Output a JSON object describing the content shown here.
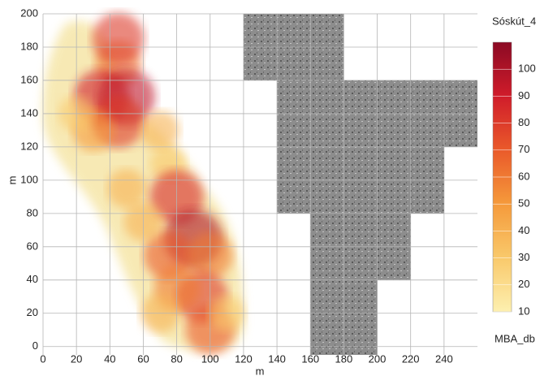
{
  "chart_data": {
    "type": "density",
    "legend_title": "Sóskút_4",
    "colorbar_label": "MBA_db",
    "xlabel": "m",
    "ylabel": "m",
    "xlim": [
      0,
      260
    ],
    "ylim": [
      -5,
      200
    ],
    "xticks": [
      0,
      20,
      40,
      60,
      80,
      100,
      120,
      140,
      160,
      180,
      200,
      220,
      240
    ],
    "yticks": [
      0,
      20,
      40,
      60,
      80,
      100,
      120,
      140,
      160,
      180,
      200
    ],
    "grid": true,
    "x": [
      45,
      45,
      35,
      50,
      45,
      30,
      70,
      50,
      75,
      80,
      90,
      75,
      100,
      95,
      80,
      100,
      110,
      20,
      60,
      70
    ],
    "y": [
      170,
      185,
      150,
      150,
      135,
      130,
      130,
      95,
      110,
      90,
      65,
      55,
      55,
      30,
      35,
      10,
      20,
      140,
      75,
      20
    ],
    "values": [
      60,
      80,
      90,
      95,
      80,
      50,
      40,
      40,
      30,
      85,
      100,
      70,
      60,
      80,
      60,
      70,
      30,
      30,
      40,
      40
    ],
    "clim": [
      10,
      110
    ],
    "colorscale": [
      {
        "value": 10,
        "color": "#fdf0b0"
      },
      {
        "value": 30,
        "color": "#f9c96b"
      },
      {
        "value": 50,
        "color": "#f59a3b"
      },
      {
        "value": 70,
        "color": "#ea5a2a"
      },
      {
        "value": 90,
        "color": "#d01c2a"
      },
      {
        "value": 110,
        "color": "#8b0a24"
      }
    ],
    "colorbar_ticks": [
      10,
      20,
      30,
      40,
      50,
      60,
      70,
      80,
      90,
      100
    ]
  }
}
